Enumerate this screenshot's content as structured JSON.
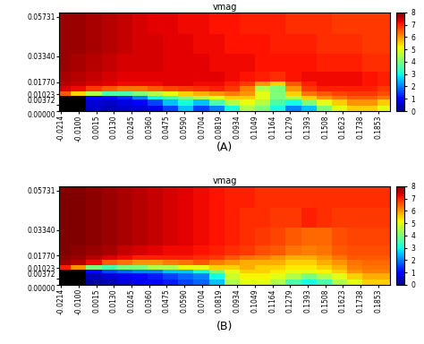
{
  "chart_data": [
    {
      "type": "heatmap",
      "title": "vmag",
      "panel_label": "(A)",
      "xlim": [
        -0.0225,
        0.193
      ],
      "ylim": [
        0,
        0.06
      ],
      "xticks": [
        -0.0214,
        {
          "value": -0.01,
          "label": "-0.0100"
        },
        0.0015,
        {
          "value": 0.013,
          "label": "0.0130"
        },
        0.0245,
        {
          "value": 0.036,
          "label": "0.0360"
        },
        0.0475,
        {
          "value": 0.059,
          "label": "0.0590"
        },
        0.0704,
        0.0819,
        0.0934,
        0.1049,
        0.1164,
        0.1279,
        0.1393,
        0.1508,
        0.1623,
        0.1738,
        0.1853
      ],
      "yticks": [
        {
          "value": 0,
          "label": "0.00000"
        },
        0.00372,
        0.01023,
        {
          "value": 0.0177,
          "label": "0.01770"
        },
        {
          "value": 0.0334,
          "label": "0.03340"
        },
        0.05731
      ],
      "x_edges": [
        -0.0225,
        -0.015,
        -0.005,
        0.005,
        0.015,
        0.025,
        0.035,
        0.045,
        0.055,
        0.065,
        0.075,
        0.085,
        0.095,
        0.105,
        0.115,
        0.125,
        0.135,
        0.145,
        0.155,
        0.165,
        0.175,
        0.185,
        0.193
      ],
      "y_edges": [
        0,
        0.0035,
        0.007,
        0.0095,
        0.012,
        0.015,
        0.018,
        0.024,
        0.035,
        0.047,
        0.06
      ],
      "cells": [
        [
          null,
          null,
          0.5,
          0.4,
          0.5,
          0.6,
          0.8,
          1.5,
          2.5,
          1.5,
          2.0,
          3.0,
          4.5,
          4.0,
          3.0,
          2.0,
          2.5,
          4.0,
          5.0,
          5.5,
          5.5,
          5.0
        ],
        [
          null,
          null,
          0.6,
          0.5,
          0.7,
          0.9,
          1.5,
          2.5,
          3.0,
          2.5,
          3.5,
          4.5,
          5.0,
          4.5,
          3.5,
          3.0,
          4.0,
          5.0,
          5.5,
          6.0,
          6.0,
          5.5
        ],
        [
          null,
          null,
          1.0,
          1.0,
          1.3,
          2.0,
          3.0,
          3.5,
          4.0,
          4.5,
          5.0,
          5.5,
          5.5,
          5.0,
          4.0,
          4.5,
          5.5,
          6.0,
          6.3,
          6.5,
          6.5,
          6.3
        ],
        [
          6.5,
          5.5,
          4.5,
          3.5,
          3.5,
          4.0,
          4.5,
          5.0,
          5.5,
          5.8,
          6.0,
          6.2,
          6.0,
          5.0,
          4.0,
          5.5,
          6.3,
          6.5,
          6.7,
          6.8,
          6.8,
          6.6
        ],
        [
          7.4,
          7.2,
          6.8,
          6.5,
          6.3,
          6.3,
          6.5,
          6.7,
          6.8,
          6.9,
          7.0,
          6.8,
          6.2,
          4.5,
          4.0,
          6.0,
          6.8,
          7.0,
          7.0,
          7.0,
          7.0,
          6.8
        ],
        [
          7.6,
          7.5,
          7.4,
          7.3,
          7.2,
          7.2,
          7.2,
          7.3,
          7.3,
          7.2,
          7.2,
          7.0,
          6.8,
          6.0,
          5.5,
          6.5,
          7.0,
          7.2,
          7.2,
          7.2,
          7.1,
          7.0
        ],
        [
          7.7,
          7.6,
          7.5,
          7.4,
          7.3,
          7.3,
          7.3,
          7.3,
          7.3,
          7.3,
          7.3,
          7.2,
          7.1,
          7.0,
          6.9,
          7.1,
          7.2,
          7.2,
          7.2,
          7.2,
          7.1,
          7.0
        ],
        [
          7.8,
          7.7,
          7.6,
          7.5,
          7.4,
          7.4,
          7.4,
          7.3,
          7.3,
          7.3,
          7.2,
          7.2,
          7.2,
          7.1,
          7.1,
          7.1,
          7.1,
          7.0,
          7.0,
          7.0,
          6.9,
          6.9
        ],
        [
          7.8,
          7.8,
          7.7,
          7.6,
          7.5,
          7.4,
          7.4,
          7.3,
          7.3,
          7.2,
          7.2,
          7.1,
          7.1,
          7.1,
          7.0,
          7.0,
          7.0,
          6.9,
          6.9,
          6.9,
          6.8,
          6.8
        ],
        [
          7.8,
          7.8,
          7.7,
          7.6,
          7.5,
          7.4,
          7.3,
          7.3,
          7.2,
          7.2,
          7.1,
          7.1,
          7.0,
          7.0,
          7.0,
          6.9,
          6.9,
          6.9,
          6.8,
          6.8,
          6.8,
          6.8
        ]
      ],
      "colorbar": {
        "range": [
          0,
          8
        ],
        "ticks": [
          0,
          1,
          2,
          3,
          4,
          5,
          6,
          7,
          8
        ]
      }
    },
    {
      "type": "heatmap",
      "title": "vmag",
      "panel_label": "(B)",
      "xlim": [
        -0.0225,
        0.193
      ],
      "ylim": [
        0,
        0.06
      ],
      "xticks": [
        -0.0214,
        {
          "value": -0.01,
          "label": "-0.0100"
        },
        0.0015,
        {
          "value": 0.013,
          "label": "0.0130"
        },
        0.0245,
        {
          "value": 0.036,
          "label": "0.0360"
        },
        0.0475,
        {
          "value": 0.059,
          "label": "0.0590"
        },
        0.0704,
        0.0819,
        0.0934,
        0.1049,
        0.1164,
        0.1279,
        0.1393,
        0.1508,
        0.1623,
        0.1738,
        0.1853
      ],
      "yticks": [
        {
          "value": 0,
          "label": "0.00000"
        },
        0.00372,
        0.01023,
        {
          "value": 0.0177,
          "label": "0.01770"
        },
        {
          "value": 0.0334,
          "label": "0.03340"
        },
        0.05731
      ],
      "x_edges": [
        -0.0225,
        -0.015,
        -0.005,
        0.005,
        0.015,
        0.025,
        0.035,
        0.045,
        0.055,
        0.065,
        0.075,
        0.085,
        0.095,
        0.105,
        0.115,
        0.125,
        0.135,
        0.145,
        0.155,
        0.165,
        0.175,
        0.185,
        0.193
      ],
      "y_edges": [
        0,
        0.0035,
        0.007,
        0.0095,
        0.012,
        0.015,
        0.018,
        0.024,
        0.035,
        0.047,
        0.06
      ],
      "cells": [
        [
          null,
          null,
          0.3,
          0.4,
          0.6,
          0.8,
          1.0,
          1.2,
          1.5,
          1.8,
          2.5,
          4.5,
          5.0,
          5.0,
          4.5,
          3.5,
          3.0,
          3.5,
          4.5,
          5.0,
          5.5,
          5.5
        ],
        [
          null,
          null,
          0.4,
          0.6,
          0.8,
          1.0,
          1.2,
          1.5,
          1.8,
          2.0,
          3.0,
          4.8,
          5.2,
          5.2,
          5.0,
          4.5,
          4.0,
          4.5,
          5.0,
          5.5,
          5.8,
          5.8
        ],
        [
          null,
          null,
          1.0,
          1.5,
          1.8,
          2.0,
          2.0,
          2.5,
          2.5,
          3.0,
          4.0,
          5.0,
          5.5,
          5.5,
          5.3,
          5.0,
          5.0,
          5.2,
          5.5,
          6.0,
          6.2,
          6.2
        ],
        [
          7.0,
          6.0,
          4.0,
          3.5,
          4.0,
          4.0,
          4.5,
          4.5,
          5.0,
          5.0,
          5.5,
          5.5,
          5.8,
          5.5,
          5.5,
          5.3,
          5.3,
          5.5,
          5.8,
          6.2,
          6.3,
          6.3
        ],
        [
          7.8,
          7.6,
          7.2,
          6.5,
          6.3,
          6.0,
          6.0,
          6.2,
          6.3,
          6.5,
          6.2,
          6.0,
          5.8,
          5.8,
          5.8,
          5.5,
          5.5,
          5.8,
          6.0,
          6.3,
          6.4,
          6.4
        ],
        [
          7.9,
          7.8,
          7.6,
          7.4,
          7.2,
          7.0,
          7.0,
          7.0,
          7.0,
          6.9,
          6.8,
          6.5,
          6.3,
          6.2,
          6.0,
          5.8,
          5.8,
          6.0,
          6.3,
          6.5,
          6.5,
          6.5
        ],
        [
          8.0,
          7.9,
          7.8,
          7.7,
          7.5,
          7.4,
          7.3,
          7.2,
          7.2,
          7.1,
          7.0,
          6.9,
          6.8,
          6.6,
          6.5,
          6.3,
          6.2,
          6.3,
          6.5,
          6.6,
          6.6,
          6.6
        ],
        [
          8.0,
          8.0,
          7.9,
          7.8,
          7.7,
          7.6,
          7.5,
          7.4,
          7.3,
          7.2,
          7.1,
          7.0,
          6.9,
          6.8,
          6.7,
          6.5,
          6.4,
          6.4,
          6.6,
          6.7,
          6.7,
          6.7
        ],
        [
          8.0,
          8.0,
          7.9,
          7.8,
          7.7,
          7.6,
          7.5,
          7.4,
          7.3,
          7.2,
          7.1,
          7.0,
          6.9,
          6.9,
          6.8,
          6.8,
          7.0,
          6.9,
          6.8,
          6.8,
          6.8,
          6.8
        ],
        [
          8.0,
          8.0,
          7.9,
          7.8,
          7.7,
          7.6,
          7.5,
          7.4,
          7.3,
          7.2,
          7.1,
          7.0,
          7.0,
          6.9,
          6.9,
          6.9,
          6.9,
          6.9,
          6.9,
          6.9,
          6.9,
          6.9
        ]
      ],
      "colorbar": {
        "range": [
          0,
          8
        ],
        "ticks": [
          0,
          1,
          2,
          3,
          4,
          5,
          6,
          7,
          8
        ]
      }
    }
  ]
}
